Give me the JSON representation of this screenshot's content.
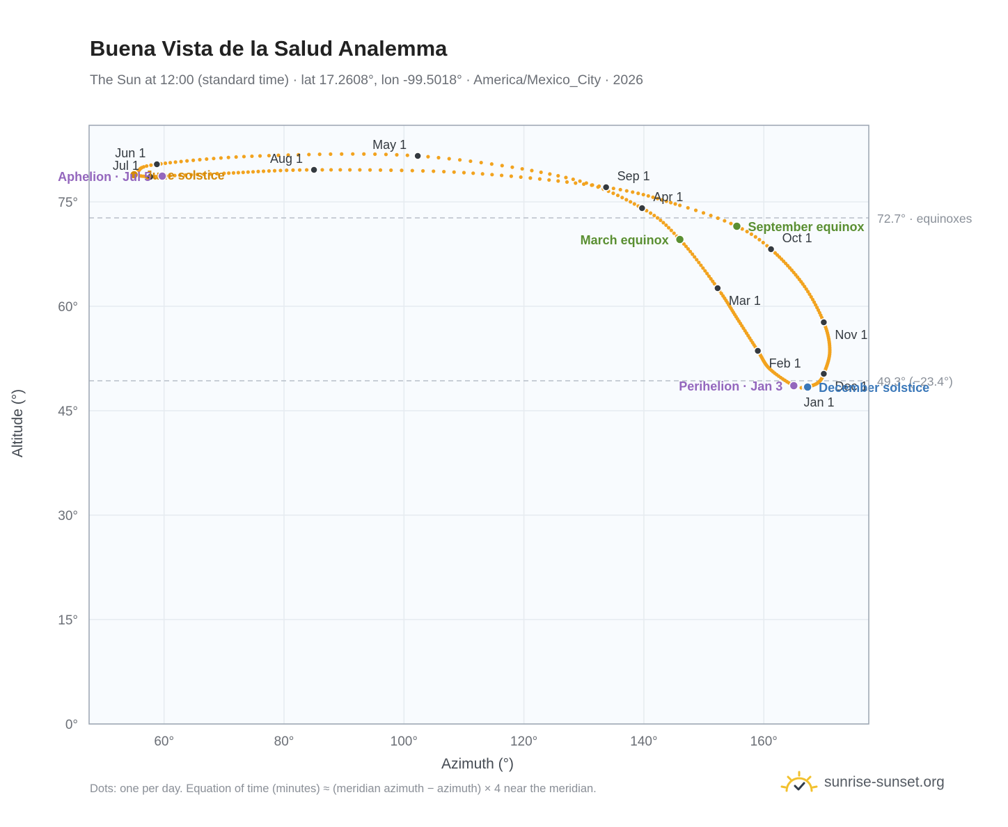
{
  "title": "Buena Vista de la Salud Analemma",
  "subtitle": "The Sun at 12:00 (standard time) · lat 17.2608°, lon -99.5018° · America/Mexico_City · 2026",
  "footnote": "Dots: one per day. Equation of time (minutes) ≈ (meridian azimuth − azimuth) × 4 near the meridian.",
  "brand": {
    "name": "sunrise-sunset.org",
    "icon": "sun-logo-icon",
    "color": "#f2c12e"
  },
  "chart_data": {
    "type": "scatter",
    "xlabel": "Azimuth (°)",
    "ylabel": "Altitude (°)",
    "xlim": [
      47.5,
      177.5
    ],
    "ylim": [
      0,
      86
    ],
    "xticks": [
      60,
      80,
      100,
      120,
      140,
      160
    ],
    "xtick_labels": [
      "60°",
      "80°",
      "100°",
      "120°",
      "140°",
      "160°"
    ],
    "yticks": [
      0,
      15,
      30,
      45,
      60,
      75
    ],
    "ytick_labels": [
      "0°",
      "15°",
      "30°",
      "45°",
      "60°",
      "75°"
    ],
    "grid": true,
    "colors": {
      "path": "#f2a31f",
      "month": "#343a40",
      "equinox": "#5a8f32",
      "december": "#3b78b9",
      "june": "#d48a0a",
      "apsis": "#9467bd",
      "ref": "#b8c0c9",
      "plot_bg": "#f8fbfe"
    },
    "reference_lines": [
      {
        "y": 72.7,
        "label": "72.7° · equinoxes"
      },
      {
        "y": 49.3,
        "label": "49.3° (−23.4°)"
      }
    ],
    "path_keypoints": [
      {
        "doy": 1,
        "x": 167.0,
        "y": 48.3
      },
      {
        "doy": 3,
        "x": 165.0,
        "y": 48.6
      },
      {
        "doy": 16,
        "x": 161.0,
        "y": 51.0
      },
      {
        "doy": 32,
        "x": 159.0,
        "y": 53.6
      },
      {
        "doy": 46,
        "x": 155.6,
        "y": 58.2
      },
      {
        "doy": 60,
        "x": 152.3,
        "y": 62.6
      },
      {
        "doy": 79,
        "x": 146.0,
        "y": 69.6
      },
      {
        "doy": 91,
        "x": 139.7,
        "y": 74.1
      },
      {
        "doy": 106,
        "x": 127.0,
        "y": 78.5
      },
      {
        "doy": 121,
        "x": 102.3,
        "y": 81.6
      },
      {
        "doy": 136,
        "x": 76.0,
        "y": 81.6
      },
      {
        "doy": 152,
        "x": 58.8,
        "y": 80.4
      },
      {
        "doy": 161,
        "x": 55.6,
        "y": 79.4
      },
      {
        "doy": 172,
        "x": 55.0,
        "y": 78.9
      },
      {
        "doy": 182,
        "x": 57.7,
        "y": 78.6
      },
      {
        "doy": 186,
        "x": 59.7,
        "y": 78.7
      },
      {
        "doy": 197,
        "x": 70.0,
        "y": 79.1
      },
      {
        "doy": 213,
        "x": 85.0,
        "y": 79.6
      },
      {
        "doy": 228,
        "x": 110.0,
        "y": 79.2
      },
      {
        "doy": 244,
        "x": 133.7,
        "y": 77.1
      },
      {
        "doy": 258,
        "x": 146.0,
        "y": 74.5
      },
      {
        "doy": 266,
        "x": 155.5,
        "y": 71.5
      },
      {
        "doy": 274,
        "x": 161.2,
        "y": 68.2
      },
      {
        "doy": 290,
        "x": 166.5,
        "y": 63.2
      },
      {
        "doy": 305,
        "x": 170.0,
        "y": 57.7
      },
      {
        "doy": 320,
        "x": 171.0,
        "y": 53.6
      },
      {
        "doy": 335,
        "x": 170.0,
        "y": 50.3
      },
      {
        "doy": 345,
        "x": 169.0,
        "y": 49.0
      },
      {
        "doy": 355,
        "x": 167.3,
        "y": 48.4
      },
      {
        "doy": 365,
        "x": 167.0,
        "y": 48.3
      }
    ],
    "month_markers": [
      {
        "label": "Jan 1",
        "x": 167.0,
        "y": 48.3,
        "pos": "below"
      },
      {
        "label": "Feb 1",
        "x": 159.0,
        "y": 53.6,
        "pos": "right-below"
      },
      {
        "label": "Mar 1",
        "x": 152.3,
        "y": 62.6,
        "pos": "right-below"
      },
      {
        "label": "Apr 1",
        "x": 139.7,
        "y": 74.1,
        "pos": "right-above"
      },
      {
        "label": "May 1",
        "x": 102.3,
        "y": 81.6,
        "pos": "left-above"
      },
      {
        "label": "Jun 1",
        "x": 58.8,
        "y": 80.4,
        "pos": "left-above"
      },
      {
        "label": "Jul 1",
        "x": 57.7,
        "y": 78.6,
        "pos": "left-above"
      },
      {
        "label": "Aug 1",
        "x": 85.0,
        "y": 79.6,
        "pos": "left-above"
      },
      {
        "label": "Sep 1",
        "x": 133.7,
        "y": 77.1,
        "pos": "right-above"
      },
      {
        "label": "Oct 1",
        "x": 161.2,
        "y": 68.2,
        "pos": "right-above"
      },
      {
        "label": "Nov 1",
        "x": 170.0,
        "y": 57.7,
        "pos": "right-below"
      },
      {
        "label": "Dec 1",
        "x": 170.0,
        "y": 50.3,
        "pos": "right-below"
      }
    ],
    "events": [
      {
        "label": "March equinox",
        "x": 146.0,
        "y": 69.6,
        "kind": "equinox",
        "pos": "left"
      },
      {
        "label": "September equinox",
        "x": 155.5,
        "y": 71.5,
        "kind": "equinox",
        "pos": "right"
      },
      {
        "label": "December solstice",
        "x": 167.3,
        "y": 48.4,
        "kind": "december",
        "pos": "right"
      },
      {
        "label": "June solstice",
        "x": 55.0,
        "y": 78.9,
        "kind": "june",
        "pos": "right"
      },
      {
        "label": "Perihelion · Jan 3",
        "x": 165.0,
        "y": 48.6,
        "kind": "apsis",
        "pos": "left"
      },
      {
        "label": "Aphelion · Jul 5",
        "x": 59.7,
        "y": 78.7,
        "kind": "apsis",
        "pos": "left"
      }
    ]
  }
}
